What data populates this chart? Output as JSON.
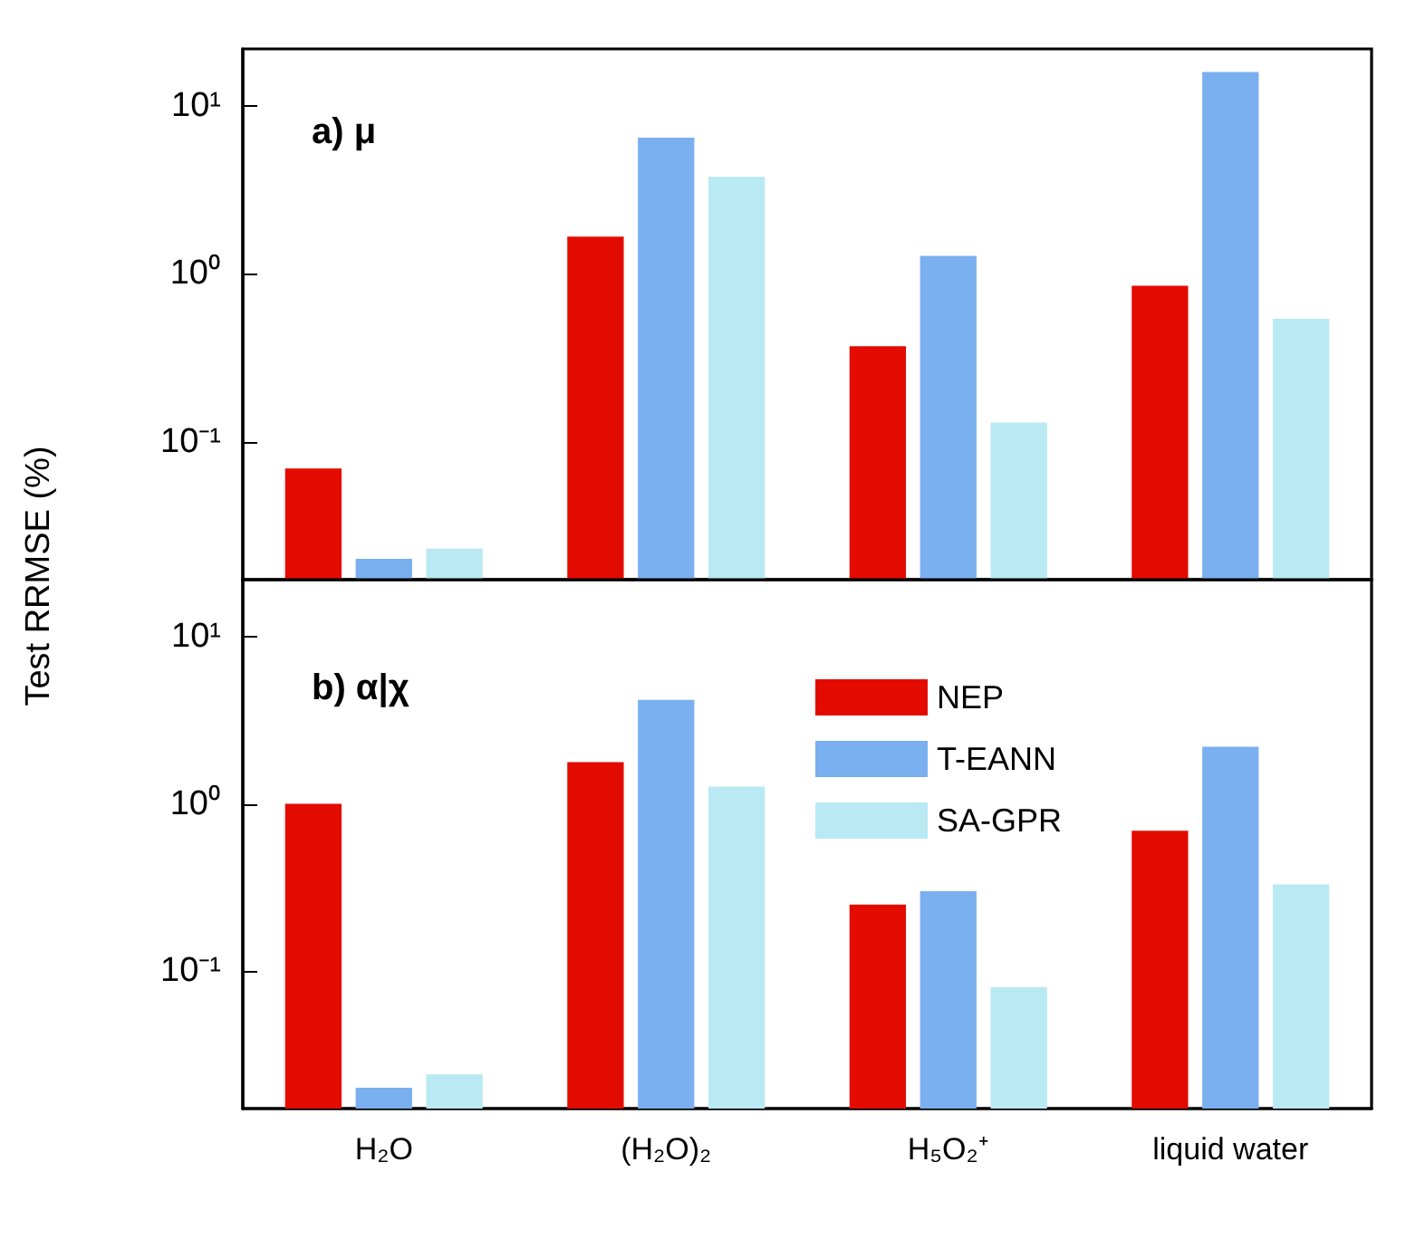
{
  "chart_data": [
    {
      "type": "bar",
      "annotations": [
        "a) μ"
      ],
      "ylabel": "Test RRMSE (%)",
      "categories": [
        null,
        null,
        null,
        null
      ],
      "series": [
        {
          "color": "#e30b00",
          "values": [
            0.069,
            1.67,
            0.37,
            0.85
          ]
        },
        {
          "color": "#7aaff0",
          "values": [
            0.02,
            6.5,
            1.28,
            16
          ]
        },
        {
          "color": "#b9e9f2",
          "values": [
            0.023,
            3.8,
            0.13,
            0.54
          ]
        }
      ],
      "log": true,
      "ylim": [
        0.015,
        22
      ],
      "yticks": [
        {
          "value": 0.1,
          "label": "10⁻¹"
        },
        {
          "value": 1,
          "label": "10⁰"
        },
        {
          "value": 10,
          "label": "10¹"
        }
      ],
      "tick_labels": "y",
      "grid": false,
      "legend": false
    },
    {
      "type": "bar",
      "annotations": [
        "b) α|χ"
      ],
      "categories": [
        "H₂O",
        "(H₂O)₂",
        "H₅O₂⁺",
        "liquid water"
      ],
      "series": [
        {
          "name": "NEP",
          "color": "#e30b00",
          "values": [
            1.0,
            1.78,
            0.25,
            0.69
          ]
        },
        {
          "name": "T-EANN",
          "color": "#7aaff0",
          "values": [
            0.02,
            4.2,
            0.3,
            2.2
          ]
        },
        {
          "name": "SA-GPR",
          "color": "#b9e9f2",
          "values": [
            0.024,
            1.27,
            0.08,
            0.33
          ]
        }
      ],
      "log": true,
      "ylim": [
        0.015,
        22
      ],
      "yticks": [
        {
          "value": 0.1,
          "label": "10⁻¹"
        },
        {
          "value": 1,
          "label": "10⁰"
        },
        {
          "value": 10,
          "label": "10¹"
        }
      ],
      "grid": false,
      "legend": "top right"
    }
  ]
}
